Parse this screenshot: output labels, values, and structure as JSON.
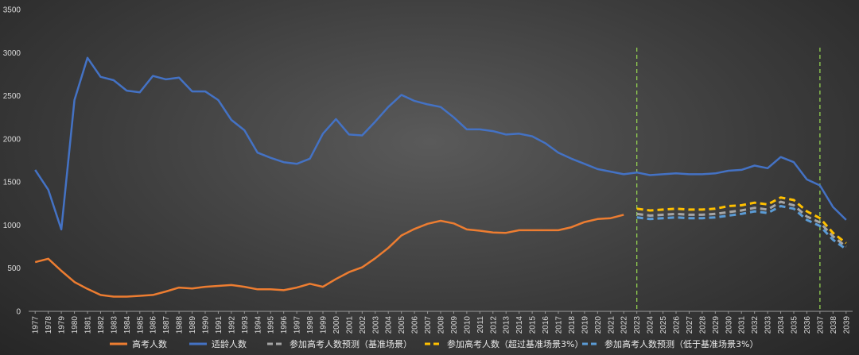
{
  "chart_data": {
    "type": "line",
    "ylim": [
      0,
      3500
    ],
    "yticks": [
      0,
      500,
      1000,
      1500,
      2000,
      2500,
      3000,
      3500
    ],
    "x": [
      "1977",
      "1978",
      "1979",
      "1980",
      "1981",
      "1982",
      "1983",
      "1984",
      "1985",
      "1986",
      "1987",
      "1988",
      "1989",
      "1990",
      "1991",
      "1992",
      "1993",
      "1994",
      "1995",
      "1996",
      "1997",
      "1998",
      "1999",
      "2000",
      "2001",
      "2002",
      "2003",
      "2004",
      "2005",
      "2006",
      "2007",
      "2008",
      "2009",
      "2010",
      "2011",
      "2012",
      "2013",
      "2014",
      "2015",
      "2016",
      "2017",
      "2018",
      "2019",
      "2020",
      "2021",
      "2022",
      "2023",
      "2024",
      "2025",
      "2026",
      "2027",
      "2028",
      "2029",
      "2030",
      "2031",
      "2032",
      "2033",
      "2034",
      "2035",
      "2036",
      "2037",
      "2038",
      "2039"
    ],
    "vlines": [
      "2023",
      "2037"
    ],
    "grid": false,
    "legend_position": "bottom",
    "series": [
      {
        "name": "高考人数",
        "color": "#ed7d31",
        "dash": false,
        "values": [
          570,
          610,
          470,
          340,
          260,
          190,
          170,
          170,
          180,
          190,
          230,
          275,
          265,
          285,
          295,
          305,
          285,
          255,
          255,
          245,
          275,
          320,
          285,
          375,
          455,
          510,
          615,
          735,
          880,
          955,
          1015,
          1050,
          1020,
          950,
          935,
          915,
          910,
          940,
          940,
          940,
          940,
          975,
          1035,
          1070,
          1080,
          1120,
          null,
          null,
          null,
          null,
          null,
          null,
          null,
          null,
          null,
          null,
          null,
          null,
          null,
          null,
          null,
          null,
          null
        ]
      },
      {
        "name": "适龄人数",
        "color": "#4472c4",
        "dash": false,
        "values": [
          1640,
          1410,
          950,
          2450,
          2940,
          2720,
          2680,
          2560,
          2540,
          2730,
          2690,
          2710,
          2550,
          2550,
          2450,
          2220,
          2100,
          1840,
          1780,
          1730,
          1710,
          1770,
          2060,
          2230,
          2050,
          2040,
          2200,
          2370,
          2510,
          2440,
          2400,
          2370,
          2250,
          2110,
          2110,
          2090,
          2050,
          2060,
          2030,
          1950,
          1840,
          1770,
          1710,
          1650,
          1620,
          1590,
          1610,
          1580,
          1590,
          1600,
          1590,
          1590,
          1600,
          1630,
          1640,
          1690,
          1660,
          1790,
          1730,
          1530,
          1460,
          1210,
          1060
        ]
      },
      {
        "name": "参加高考人数预测（基准场景）",
        "color": "#a5a5a5",
        "dash": true,
        "values": [
          null,
          null,
          null,
          null,
          null,
          null,
          null,
          null,
          null,
          null,
          null,
          null,
          null,
          null,
          null,
          null,
          null,
          null,
          null,
          null,
          null,
          null,
          null,
          null,
          null,
          null,
          null,
          null,
          null,
          null,
          null,
          null,
          null,
          null,
          null,
          null,
          null,
          null,
          null,
          null,
          null,
          null,
          null,
          null,
          null,
          null,
          1130,
          1110,
          1120,
          1130,
          1120,
          1120,
          1130,
          1150,
          1170,
          1200,
          1180,
          1270,
          1230,
          1100,
          1030,
          870,
          750
        ]
      },
      {
        "name": "参加高考人数（超过基准场景3%）",
        "color": "#ffc000",
        "dash": true,
        "values": [
          null,
          null,
          null,
          null,
          null,
          null,
          null,
          null,
          null,
          null,
          null,
          null,
          null,
          null,
          null,
          null,
          null,
          null,
          null,
          null,
          null,
          null,
          null,
          null,
          null,
          null,
          null,
          null,
          null,
          null,
          null,
          null,
          null,
          null,
          null,
          null,
          null,
          null,
          null,
          null,
          null,
          null,
          null,
          null,
          null,
          null,
          1190,
          1170,
          1180,
          1190,
          1180,
          1180,
          1190,
          1220,
          1230,
          1260,
          1240,
          1320,
          1290,
          1160,
          1080,
          910,
          790
        ]
      },
      {
        "name": "参加高考人数预测（低于基准场景3%）",
        "color": "#5b9bd5",
        "dash": true,
        "values": [
          null,
          null,
          null,
          null,
          null,
          null,
          null,
          null,
          null,
          null,
          null,
          null,
          null,
          null,
          null,
          null,
          null,
          null,
          null,
          null,
          null,
          null,
          null,
          null,
          null,
          null,
          null,
          null,
          null,
          null,
          null,
          null,
          null,
          null,
          null,
          null,
          null,
          null,
          null,
          null,
          null,
          null,
          null,
          null,
          null,
          null,
          1090,
          1070,
          1080,
          1090,
          1080,
          1080,
          1090,
          1110,
          1130,
          1160,
          1140,
          1220,
          1190,
          1060,
          990,
          830,
          720
        ]
      }
    ]
  }
}
